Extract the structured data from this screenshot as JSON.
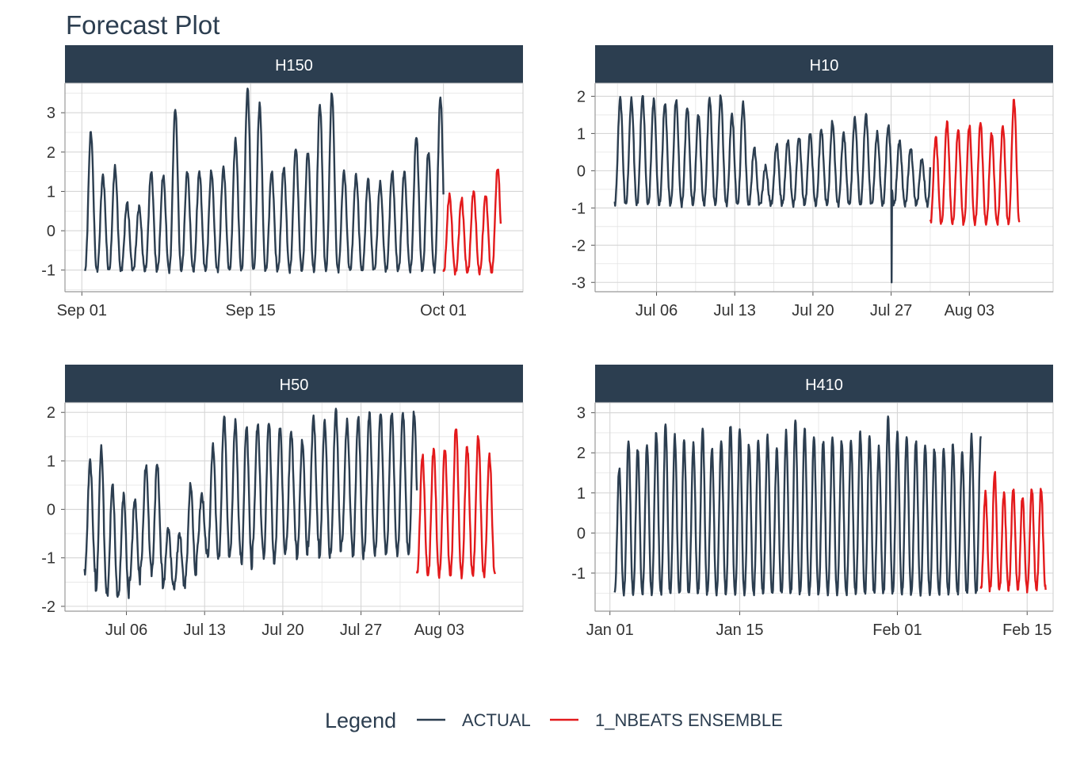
{
  "title": "Forecast Plot",
  "legend": {
    "title": "Legend",
    "placement": "bottom",
    "items": [
      {
        "label": "ACTUAL",
        "color": "#2c3e50"
      },
      {
        "label": "1_NBEATS ENSEMBLE",
        "color": "#e31a1c"
      }
    ]
  },
  "chart_data": [
    {
      "type": "line",
      "facet": "H150",
      "x_unit": "day",
      "xlim": [
        -1.4,
        36.6
      ],
      "ylim": [
        -1.55,
        3.75
      ],
      "xticks": [
        {
          "label": "Sep 01",
          "value": 0
        },
        {
          "label": "Sep 15",
          "value": 14
        },
        {
          "label": "Oct 01",
          "value": 30
        }
      ],
      "yticks": [
        -1,
        0,
        1,
        2,
        3
      ],
      "series": [
        {
          "legend": "ACTUAL",
          "start": 0.25,
          "end": 30.0,
          "base": -1.0,
          "peaks": [
            2.5,
            1.4,
            1.6,
            0.7,
            0.6,
            1.5,
            1.4,
            3.1,
            1.5,
            1.5,
            1.5,
            1.6,
            2.3,
            3.6,
            3.2,
            1.5,
            1.6,
            2.1,
            2.0,
            3.2,
            3.5,
            1.5,
            1.4,
            1.3,
            1.2,
            1.5,
            1.5,
            2.4,
            2.0,
            3.4
          ]
        },
        {
          "legend": "1_NBEATS ENSEMBLE",
          "start": 30.0,
          "end": 34.75,
          "base": -1.05,
          "peaks": [
            0.9,
            0.8,
            1.0,
            0.9,
            1.6,
            1.4,
            1.3,
            1.2,
            1.1
          ]
        }
      ]
    },
    {
      "type": "line",
      "facet": "H10",
      "x_unit": "day",
      "xlim": [
        -0.5,
        40.5
      ],
      "ylim": [
        -3.25,
        2.35
      ],
      "xticks": [
        {
          "label": "Jul 06",
          "value": 5
        },
        {
          "label": "Jul 13",
          "value": 12
        },
        {
          "label": "Jul 20",
          "value": 19
        },
        {
          "label": "Jul 27",
          "value": 26
        },
        {
          "label": "Aug 03",
          "value": 33
        }
      ],
      "yticks": [
        -3,
        -2,
        -1,
        0,
        1,
        2
      ],
      "series": [
        {
          "legend": "ACTUAL",
          "start": 1.25,
          "end": 29.5,
          "base": -0.9,
          "peaks": [
            1.95,
            1.9,
            2.0,
            1.9,
            1.8,
            1.9,
            1.7,
            1.5,
            1.95,
            2.0,
            1.5,
            1.8,
            0.6,
            0.1,
            0.7,
            0.8,
            0.9,
            1.0,
            1.1,
            1.3,
            1.0,
            1.4,
            1.5,
            1.0,
            1.2,
            0.8,
            0.6,
            0.3,
            1.3,
            0.7
          ],
          "dips": [
            {
              "x": 26.05,
              "y": -3.0
            }
          ]
        },
        {
          "legend": "1_NBEATS ENSEMBLE",
          "start": 29.5,
          "end": 37.5,
          "base": -1.4,
          "peaks": [
            0.9,
            1.3,
            1.1,
            1.2,
            1.3,
            1.0,
            1.2,
            1.9
          ]
        }
      ]
    },
    {
      "type": "line",
      "facet": "H50",
      "x_unit": "day",
      "xlim": [
        -0.5,
        40.5
      ],
      "ylim": [
        -2.1,
        2.2
      ],
      "xticks": [
        {
          "label": "Jul 06",
          "value": 5
        },
        {
          "label": "Jul 13",
          "value": 12
        },
        {
          "label": "Jul 20",
          "value": 19
        },
        {
          "label": "Jul 27",
          "value": 26
        },
        {
          "label": "Aug 03",
          "value": 33
        }
      ],
      "yticks": [
        -2,
        -1,
        0,
        1,
        2
      ],
      "series": [
        {
          "legend": "ACTUAL",
          "start": 1.25,
          "end": 31.0,
          "base": -1.6,
          "peaks": [
            1.0,
            1.25,
            0.5,
            0.3,
            0.2,
            0.9,
            0.95,
            -0.4,
            -0.5,
            0.5,
            0.3,
            1.3,
            1.9,
            1.8,
            1.7,
            1.75,
            1.8,
            1.7,
            1.6,
            1.4,
            1.9,
            1.8,
            2.05,
            1.8,
            1.9,
            2.0
          ],
          "troughs": [
            -1.3,
            -1.7,
            -1.8,
            -1.8,
            -1.5,
            -1.2,
            -1.3,
            -1.6,
            -1.6,
            -1.4,
            -0.9,
            -1.0,
            -1.0,
            -0.9,
            -1.2,
            -0.8,
            -1.1,
            -1.0,
            -0.8,
            -1.0,
            -0.7,
            -1.0,
            -0.9,
            -0.7,
            -1.0,
            -0.9
          ]
        },
        {
          "legend": "1_NBEATS ENSEMBLE",
          "start": 31.0,
          "end": 38.0,
          "base": -1.35,
          "peaks": [
            1.1,
            1.25,
            1.25,
            1.7,
            1.3,
            1.5,
            1.1
          ]
        }
      ]
    },
    {
      "type": "line",
      "facet": "H410",
      "x_unit": "day",
      "xlim": [
        -1.6,
        47.8
      ],
      "ylim": [
        -1.95,
        3.25
      ],
      "xticks": [
        {
          "label": "Jan 01",
          "value": 0
        },
        {
          "label": "Jan 15",
          "value": 14
        },
        {
          "label": "Feb 01",
          "value": 31
        },
        {
          "label": "Feb 15",
          "value": 45
        }
      ],
      "yticks": [
        -1,
        0,
        1,
        2,
        3
      ],
      "series": [
        {
          "legend": "ACTUAL",
          "start": 0.5,
          "end": 40.0,
          "base": -1.5,
          "peaks": [
            1.6,
            2.3,
            2.1,
            2.2,
            2.5,
            2.7,
            2.4,
            2.3,
            2.2,
            2.6,
            2.1,
            2.3,
            2.7,
            2.6,
            2.2,
            2.3,
            2.4,
            2.1,
            2.5,
            2.8,
            2.6,
            2.4,
            2.3,
            2.4,
            2.3,
            2.3,
            2.5,
            2.4,
            2.1,
            2.9,
            2.5,
            2.4,
            2.3,
            2.2,
            2.1,
            2.1,
            2.2,
            2.0,
            2.4
          ]
        },
        {
          "legend": "1_NBEATS ENSEMBLE",
          "start": 40.0,
          "end": 47.0,
          "base": -1.4,
          "peaks": [
            1.0,
            1.5,
            1.0,
            1.1,
            0.9,
            1.1,
            1.1
          ]
        }
      ]
    }
  ]
}
